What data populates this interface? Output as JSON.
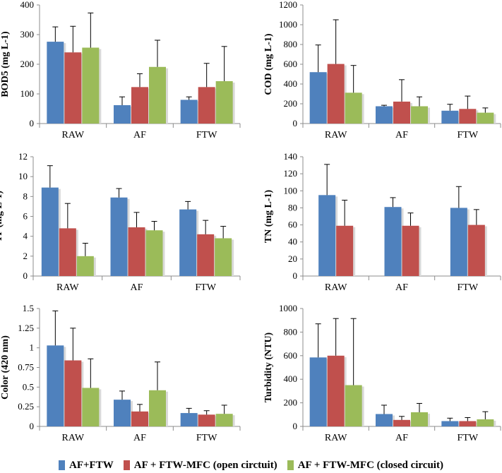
{
  "colors": {
    "series1": "#4F81BD",
    "series2": "#C0504D",
    "series3": "#9BBB59",
    "axis": "#7f7f7f",
    "text": "#000000"
  },
  "legend": {
    "items": [
      {
        "label": "AF+FTW",
        "color": "#4F81BD"
      },
      {
        "label": "AF + FTW-MFC (open circtuit)",
        "color": "#C0504D"
      },
      {
        "label": "AF + FTW-MFC (closed circuit)",
        "color": "#9BBB59"
      }
    ]
  },
  "chart_data": [
    {
      "type": "bar",
      "ylabel": "BOD5 (mg L-1)",
      "categories": [
        "RAW",
        "AF",
        "FTW"
      ],
      "ylim": [
        0,
        400
      ],
      "yticks": [
        0,
        100,
        200,
        300,
        400
      ],
      "ytick_labels": [
        "0",
        "100",
        "200",
        "300",
        "400"
      ],
      "series": [
        {
          "name": "AF+FTW",
          "values": [
            276,
            62,
            80
          ],
          "errors": [
            50,
            28,
            10
          ]
        },
        {
          "name": "AF + FTW-MFC (open circtuit)",
          "values": [
            240,
            123,
            123
          ],
          "errors": [
            88,
            45,
            80
          ]
        },
        {
          "name": "AF + FTW-MFC (closed circuit)",
          "values": [
            256,
            191,
            143
          ],
          "errors": [
            117,
            90,
            117
          ]
        }
      ]
    },
    {
      "type": "bar",
      "ylabel": "COD (mg L-1)",
      "categories": [
        "RAW",
        "AF",
        "FTW"
      ],
      "ylim": [
        0,
        1200
      ],
      "yticks": [
        0,
        200,
        400,
        600,
        800,
        1000,
        1200
      ],
      "ytick_labels": [
        "0",
        "200",
        "400",
        "600",
        "800",
        "1000",
        "1200"
      ],
      "series": [
        {
          "name": "AF+FTW",
          "values": [
            520,
            175,
            130
          ],
          "errors": [
            275,
            10,
            65
          ]
        },
        {
          "name": "AF + FTW-MFC (open circtuit)",
          "values": [
            603,
            222,
            148
          ],
          "errors": [
            447,
            222,
            130
          ]
        },
        {
          "name": "AF + FTW-MFC (closed circuit)",
          "values": [
            312,
            175,
            110
          ],
          "errors": [
            276,
            95,
            48
          ]
        }
      ]
    },
    {
      "type": "bar",
      "ylabel": "TP (mg L-1)",
      "categories": [
        "RAW",
        "AF",
        "FTW"
      ],
      "ylim": [
        0,
        12
      ],
      "yticks": [
        0,
        2,
        4,
        6,
        8,
        10,
        12
      ],
      "ytick_labels": [
        "0",
        "2",
        "4",
        "6",
        "8",
        "10",
        "12"
      ],
      "series": [
        {
          "name": "AF+FTW",
          "values": [
            8.9,
            7.9,
            6.7
          ],
          "errors": [
            2.2,
            0.9,
            0.8
          ]
        },
        {
          "name": "AF + FTW-MFC (open circtuit)",
          "values": [
            4.8,
            4.9,
            4.2
          ],
          "errors": [
            2.5,
            1.5,
            1.4
          ]
        },
        {
          "name": "AF + FTW-MFC (closed circuit)",
          "values": [
            2.0,
            4.6,
            3.8
          ],
          "errors": [
            1.3,
            0.9,
            1.2
          ]
        }
      ]
    },
    {
      "type": "bar",
      "ylabel": "TN (mg L-1)",
      "categories": [
        "RAW",
        "AF",
        "FTW"
      ],
      "ylim": [
        0,
        140
      ],
      "yticks": [
        0,
        20,
        40,
        60,
        80,
        100,
        120,
        140
      ],
      "ytick_labels": [
        "0",
        "20",
        "40",
        "60",
        "80",
        "100",
        "120",
        "140"
      ],
      "series": [
        {
          "name": "AF+FTW",
          "values": [
            95,
            81,
            80
          ],
          "errors": [
            36,
            11,
            25
          ]
        },
        {
          "name": "AF + FTW-MFC (open circtuit)",
          "values": [
            59,
            59,
            60
          ],
          "errors": [
            30,
            15,
            18
          ]
        }
      ]
    },
    {
      "type": "bar",
      "ylabel": "Color (420 nm)",
      "categories": [
        "RAW",
        "AF",
        "FTW"
      ],
      "ylim": [
        0,
        1.5
      ],
      "yticks": [
        0,
        0.25,
        0.5,
        0.75,
        1,
        1.25,
        1.5
      ],
      "ytick_labels": [
        "0",
        "0.25",
        "0.5",
        "0.75",
        "1",
        "1.25",
        "1.5"
      ],
      "series": [
        {
          "name": "AF+FTW",
          "values": [
            1.03,
            0.34,
            0.17
          ],
          "errors": [
            0.44,
            0.11,
            0.06
          ]
        },
        {
          "name": "AF + FTW-MFC (open circtuit)",
          "values": [
            0.84,
            0.19,
            0.15
          ],
          "errors": [
            0.41,
            0.09,
            0.05
          ]
        },
        {
          "name": "AF + FTW-MFC (closed circuit)",
          "values": [
            0.49,
            0.46,
            0.16
          ],
          "errors": [
            0.37,
            0.36,
            0.11
          ]
        }
      ]
    },
    {
      "type": "bar",
      "ylabel": "Turbidity (NTU)",
      "categories": [
        "RAW",
        "AF",
        "FTW"
      ],
      "ylim": [
        0,
        1000
      ],
      "yticks": [
        0,
        200,
        400,
        600,
        800,
        1000
      ],
      "ytick_labels": [
        "0",
        "200",
        "400",
        "600",
        "800",
        "1000"
      ],
      "series": [
        {
          "name": "AF+FTW",
          "values": [
            585,
            105,
            45
          ],
          "errors": [
            285,
            75,
            25
          ]
        },
        {
          "name": "AF + FTW-MFC (open circtuit)",
          "values": [
            600,
            55,
            45
          ],
          "errors": [
            315,
            30,
            30
          ]
        },
        {
          "name": "AF + FTW-MFC (closed circuit)",
          "values": [
            350,
            120,
            60
          ],
          "errors": [
            565,
            75,
            65
          ]
        }
      ]
    }
  ]
}
